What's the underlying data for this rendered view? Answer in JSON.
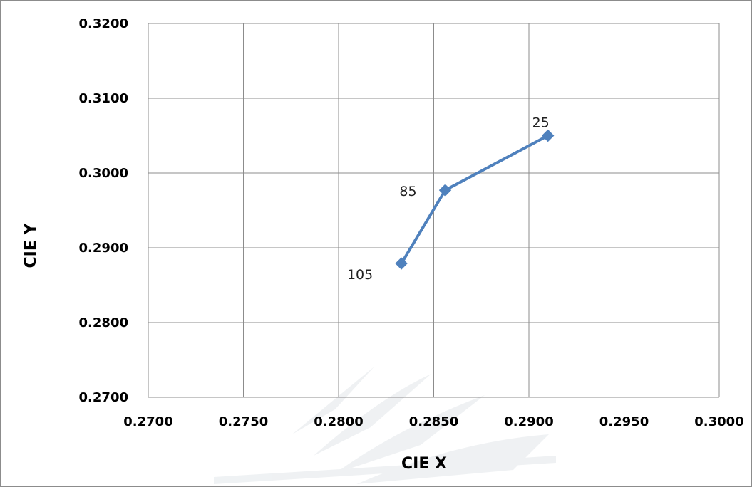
{
  "chart_data": {
    "type": "scatter",
    "xlabel": "CIE X",
    "ylabel": "CIE Y",
    "xlim": [
      0.27,
      0.3
    ],
    "ylim": [
      0.27,
      0.32
    ],
    "x_ticks": [
      "0.2700",
      "0.2750",
      "0.2800",
      "0.2850",
      "0.2900",
      "0.2950",
      "0.3000"
    ],
    "y_ticks": [
      "0.2700",
      "0.2800",
      "0.2900",
      "0.3000",
      "0.3100",
      "0.3200"
    ],
    "grid": true,
    "legend": "none",
    "series": [
      {
        "color": "#4f81bd",
        "marker": "diamond",
        "line": true,
        "points": [
          {
            "x": 0.291,
            "y": 0.305,
            "label": "25"
          },
          {
            "x": 0.2856,
            "y": 0.2977,
            "label": "85"
          },
          {
            "x": 0.2833,
            "y": 0.2879,
            "label": "105"
          }
        ]
      }
    ]
  }
}
